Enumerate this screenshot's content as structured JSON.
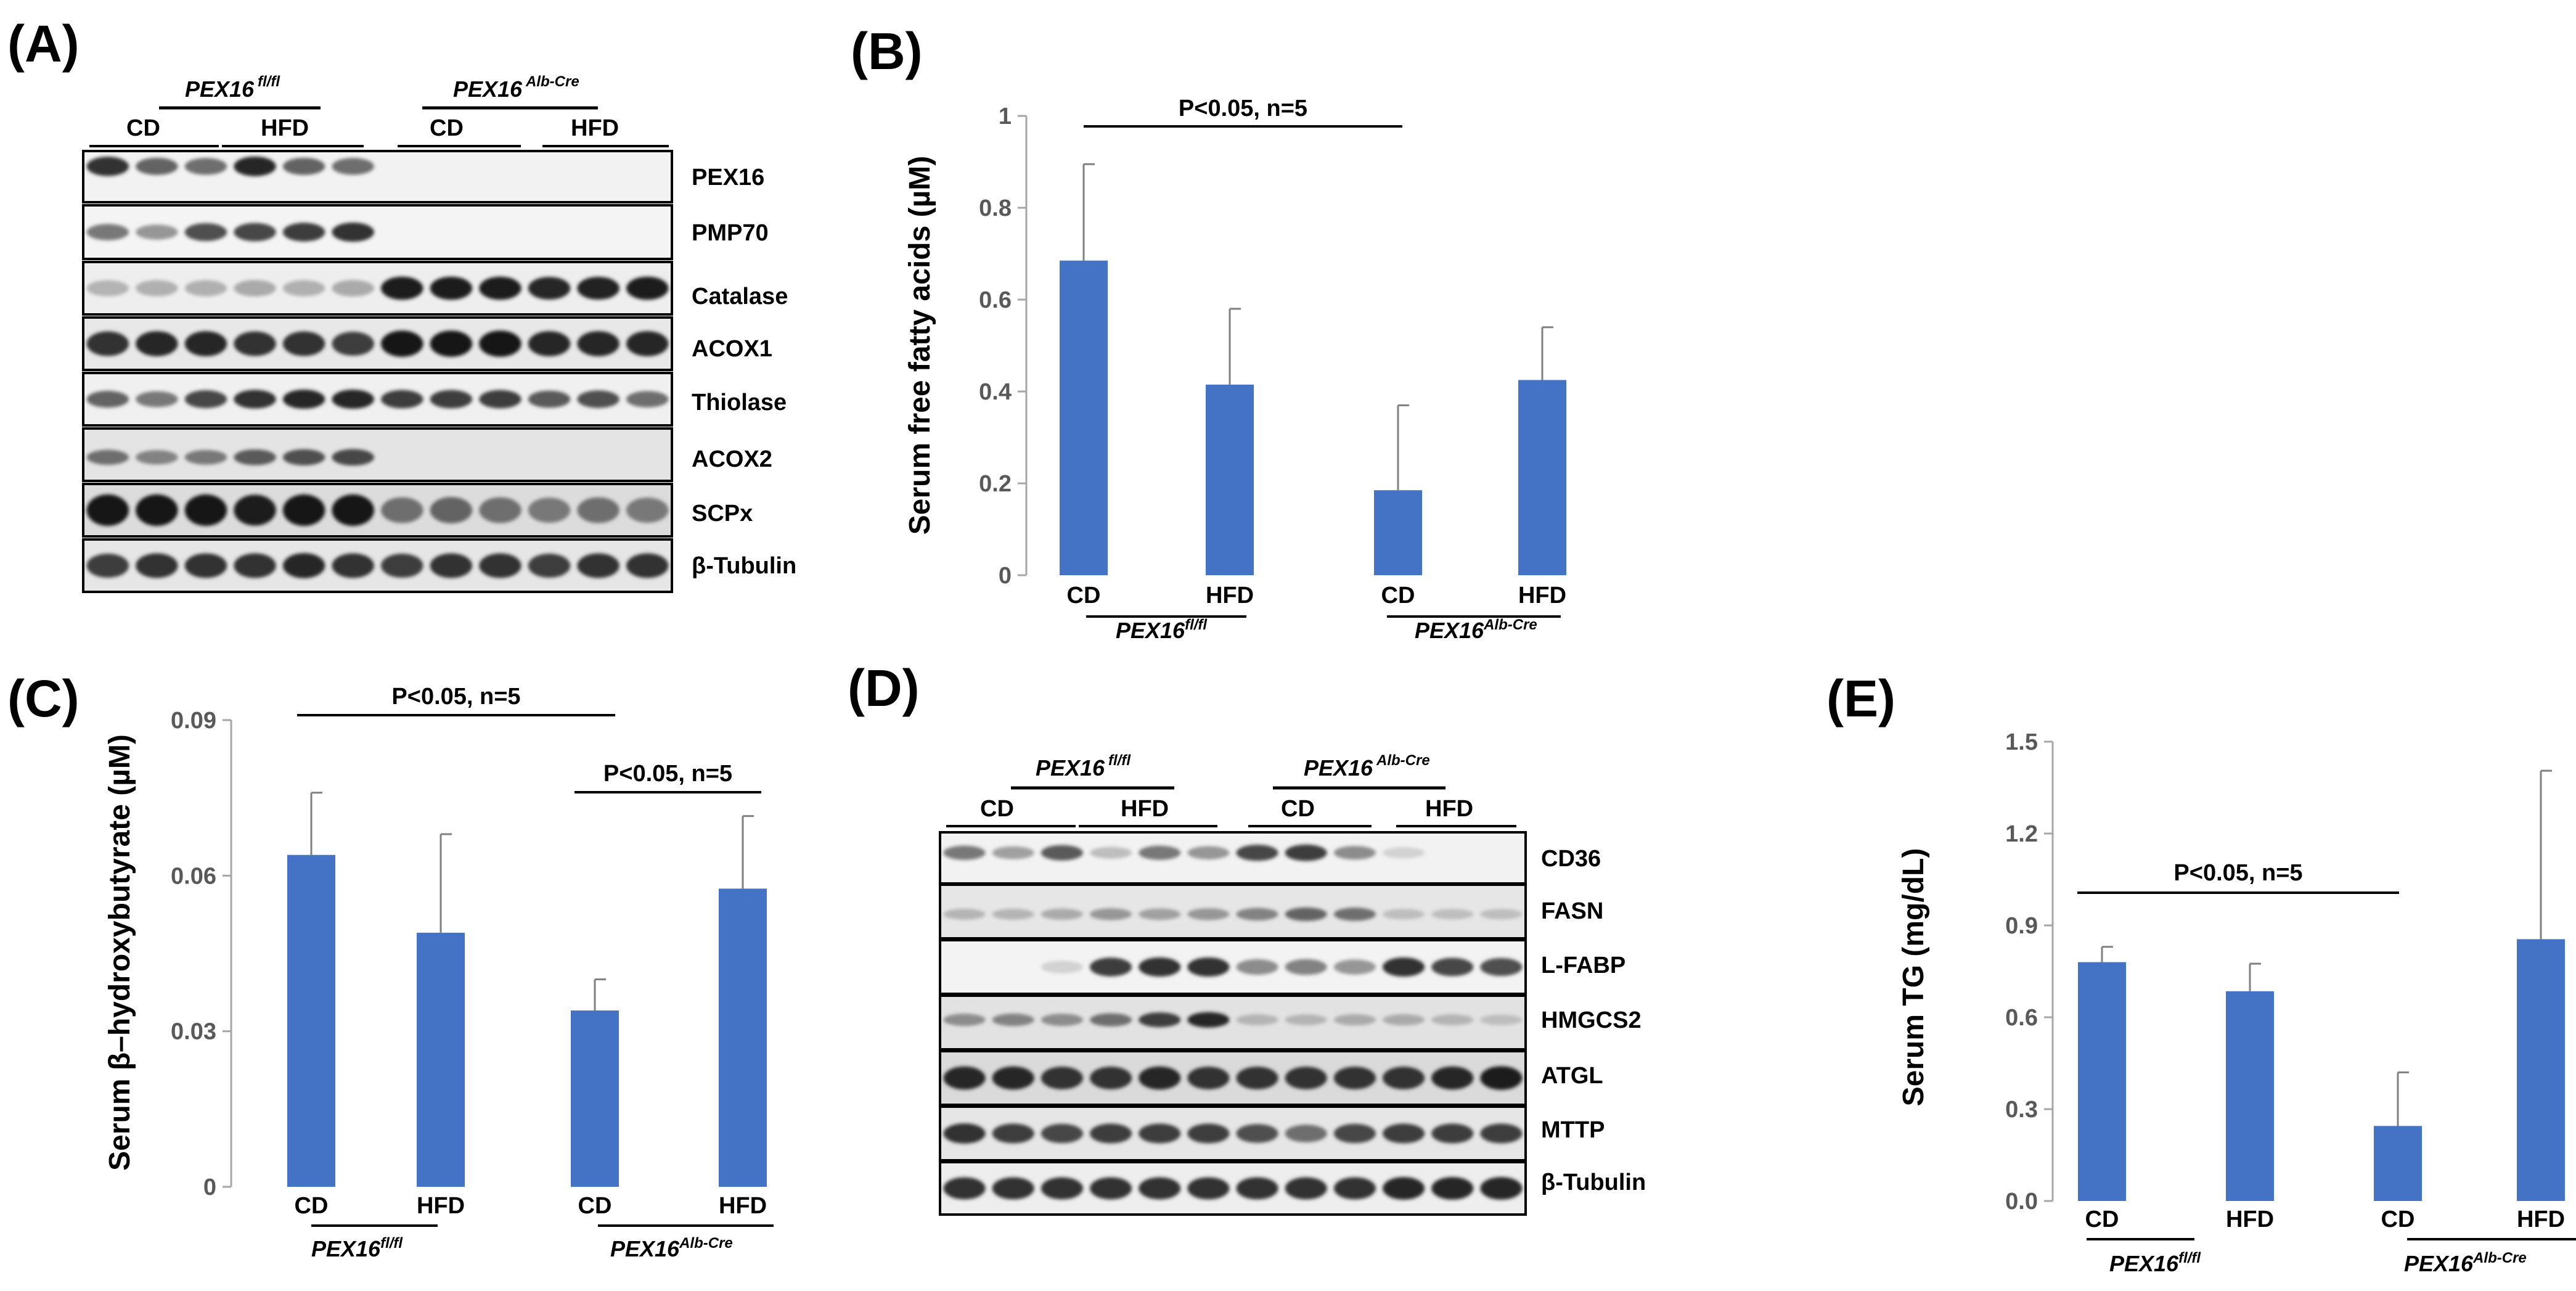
{
  "panels": {
    "a": {
      "letter": "(A)",
      "group1": {
        "name": "PEX16",
        "sup": "fl/fl"
      },
      "group2": {
        "name": "PEX16",
        "sup": "Alb-Cre"
      },
      "diet": [
        "CD",
        "HFD",
        "CD",
        "HFD"
      ],
      "bands": [
        "PEX16",
        "PMP70",
        "Catalase",
        "ACOX1",
        "Thiolase",
        "ACOX2",
        "SCPx",
        "β-Tubulin"
      ]
    },
    "d": {
      "letter": "(D)",
      "group1": {
        "name": "PEX16",
        "sup": "fl/fl"
      },
      "group2": {
        "name": "PEX16",
        "sup": "Alb-Cre"
      },
      "diet": [
        "CD",
        "HFD",
        "CD",
        "HFD"
      ],
      "bands": [
        "CD36",
        "FASN",
        "L-FABP",
        "HMGCS2",
        "ATGL",
        "MTTP",
        "β-Tubulin"
      ]
    }
  },
  "chart_data": [
    {
      "id": "B",
      "letter": "(B)",
      "type": "bar",
      "categories": [
        "CD",
        "HFD",
        "CD",
        "HFD"
      ],
      "groups": [
        {
          "name": "PEX16",
          "sup": "fl/fl"
        },
        {
          "name": "PEX16",
          "sup": "Alb-Cre"
        }
      ],
      "values": [
        0.685,
        0.415,
        0.185,
        0.425
      ],
      "errors": [
        0.21,
        0.165,
        0.185,
        0.115
      ],
      "ylabel": "Serum free fatty acids (µM)",
      "ylim": [
        0,
        1
      ],
      "yticks": [
        "0",
        "0.2",
        "0.4",
        "0.6",
        "0.8",
        "1"
      ],
      "yticks_num": [
        0,
        0.2,
        0.4,
        0.6,
        0.8,
        1.0
      ],
      "significance": [
        {
          "text": "P<0.05, n=5",
          "from": 0,
          "to": 2
        }
      ],
      "bar_color": "#4472C4"
    },
    {
      "id": "C",
      "letter": "(C)",
      "type": "bar",
      "categories": [
        "CD",
        "HFD",
        "CD",
        "HFD"
      ],
      "groups": [
        {
          "name": "PEX16",
          "sup": "fl/fl"
        },
        {
          "name": "PEX16",
          "sup": "Alb-Cre"
        }
      ],
      "values": [
        0.064,
        0.049,
        0.034,
        0.0575
      ],
      "errors": [
        0.012,
        0.019,
        0.006,
        0.014
      ],
      "ylabel": "Serum β–hydroxybutyrate (µM)",
      "ylim": [
        0,
        0.09
      ],
      "yticks": [
        "0",
        "0.03",
        "0.06",
        "0.09"
      ],
      "yticks_num": [
        0,
        0.03,
        0.06,
        0.09
      ],
      "significance": [
        {
          "text": "P<0.05, n=5",
          "from": 0,
          "to": 2
        },
        {
          "text": "P<0.05, n=5",
          "from": 2,
          "to": 3
        }
      ],
      "bar_color": "#4472C4"
    },
    {
      "id": "E",
      "letter": "(E)",
      "type": "bar",
      "categories": [
        "CD",
        "HFD",
        "CD",
        "HFD"
      ],
      "groups": [
        {
          "name": "PEX16",
          "sup": "fl/fl"
        },
        {
          "name": "PEX16",
          "sup": "Alb-Cre"
        }
      ],
      "values": [
        0.78,
        0.685,
        0.245,
        0.855
      ],
      "errors": [
        0.05,
        0.09,
        0.175,
        0.55
      ],
      "ylabel": "Serum TG (mg/dL)",
      "ylim": [
        0,
        1.5
      ],
      "yticks": [
        "0.0",
        "0.3",
        "0.6",
        "0.9",
        "1.2",
        "1.5"
      ],
      "yticks_num": [
        0,
        0.3,
        0.6,
        0.9,
        1.2,
        1.5
      ],
      "significance": [
        {
          "text": "P<0.05, n=5",
          "from": 0,
          "to": 2
        }
      ],
      "bar_color": "#4472C4"
    }
  ]
}
